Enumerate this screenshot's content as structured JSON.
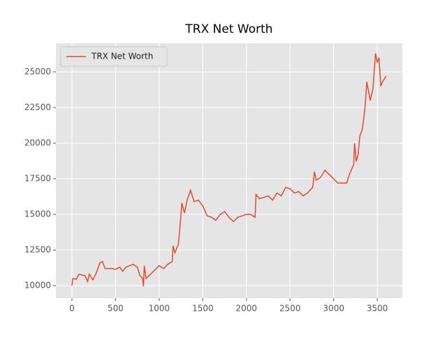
{
  "chart_data": {
    "type": "line",
    "title": "TRX Net Worth",
    "x": [
      0,
      10,
      50,
      80,
      150,
      180,
      200,
      240,
      280,
      320,
      350,
      380,
      450,
      500,
      550,
      580,
      620,
      700,
      750,
      780,
      810,
      820,
      830,
      850,
      900,
      950,
      1000,
      1050,
      1100,
      1150,
      1160,
      1180,
      1220,
      1240,
      1260,
      1290,
      1320,
      1360,
      1400,
      1450,
      1500,
      1550,
      1600,
      1650,
      1700,
      1750,
      1800,
      1850,
      1900,
      1950,
      2000,
      2050,
      2100,
      2110,
      2150,
      2200,
      2250,
      2300,
      2350,
      2400,
      2450,
      2500,
      2550,
      2600,
      2650,
      2700,
      2760,
      2780,
      2800,
      2850,
      2900,
      2950,
      3000,
      3050,
      3100,
      3150,
      3180,
      3230,
      3240,
      3260,
      3280,
      3300,
      3330,
      3360,
      3380,
      3420,
      3450,
      3480,
      3500,
      3520,
      3540,
      3560,
      3600
    ],
    "series": [
      {
        "name": "TRX Net Worth",
        "color": "#E24A33",
        "values": [
          10000,
          10500,
          10450,
          10800,
          10700,
          10300,
          10800,
          10400,
          10900,
          11600,
          11700,
          11200,
          11200,
          11150,
          11300,
          11000,
          11300,
          11500,
          11300,
          10700,
          10500,
          9950,
          11400,
          10500,
          10800,
          11100,
          11400,
          11200,
          11500,
          11700,
          12800,
          12300,
          12900,
          14200,
          15800,
          15100,
          16000,
          16700,
          15900,
          16000,
          15600,
          14900,
          14800,
          14600,
          15000,
          15200,
          14800,
          14500,
          14800,
          14900,
          15000,
          15000,
          14800,
          16400,
          16100,
          16200,
          16300,
          16000,
          16500,
          16300,
          16900,
          16800,
          16500,
          16600,
          16300,
          16500,
          16900,
          18000,
          17400,
          17600,
          18100,
          17800,
          17500,
          17200,
          17200,
          17200,
          17800,
          18500,
          20000,
          18700,
          19200,
          20500,
          21000,
          22500,
          24300,
          23000,
          23800,
          26300,
          25700,
          26000,
          24000,
          24300,
          24700
        ]
      }
    ],
    "xlim": [
      -184,
      3787
    ],
    "ylim": [
      9120,
      27010
    ],
    "xticks": [
      0,
      500,
      1000,
      1500,
      2000,
      2500,
      3000,
      3500
    ],
    "yticks": [
      10000,
      12500,
      15000,
      17500,
      20000,
      22500,
      25000
    ],
    "grid": true,
    "legend": "upper-left"
  }
}
